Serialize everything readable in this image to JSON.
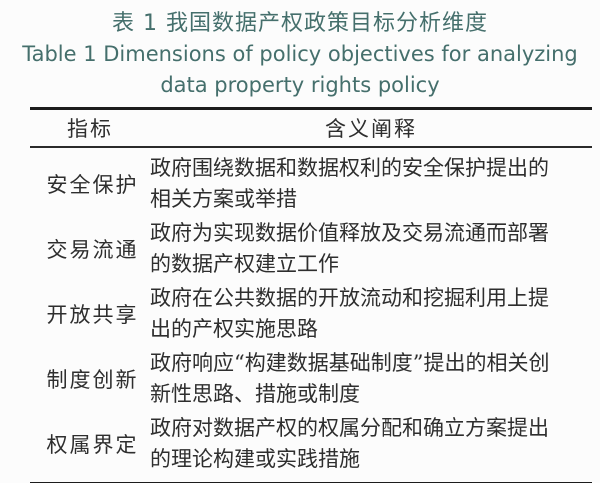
{
  "caption": {
    "zh": "表 1  我国数据产权政策目标分析维度",
    "en_line1": "Table 1  Dimensions of policy objectives for analyzing",
    "en_line2": "data property rights policy"
  },
  "table": {
    "headers": {
      "indicator": "指标",
      "meaning": "含义阐释"
    },
    "rows": [
      {
        "indicator": "安全保护",
        "meaning": "政府围绕数据和数据权利的安全保护提出的相关方案或举措"
      },
      {
        "indicator": "交易流通",
        "meaning": "政府为实现数据价值释放及交易流通而部署的数据产权建立工作"
      },
      {
        "indicator": "开放共享",
        "meaning": "政府在公共数据的开放流动和挖掘利用上提出的产权实施思路"
      },
      {
        "indicator": "制度创新",
        "meaning": "政府响应“构建数据基础制度”提出的相关创新性思路、措施或制度"
      },
      {
        "indicator": "权属界定",
        "meaning": "政府对数据产权的权属分配和确立方案提出的理论构建或实践措施"
      }
    ]
  },
  "colors": {
    "caption_teal": "#456f6c",
    "body_text": "#2e2e2e",
    "rule": "#1c1c1c",
    "background": "#fcfcfc"
  }
}
